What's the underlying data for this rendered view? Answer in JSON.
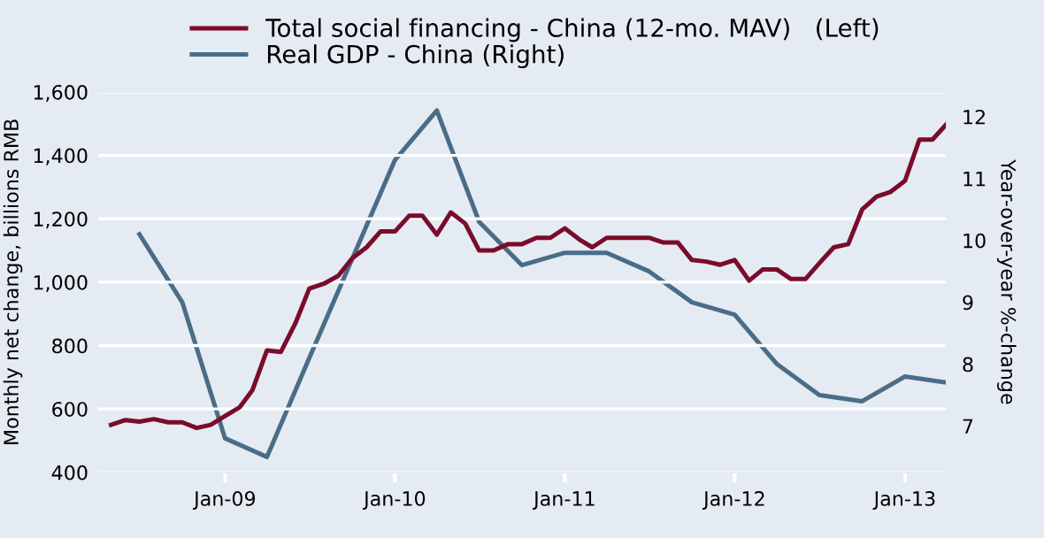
{
  "chart_data": {
    "type": "line",
    "ylabel": "Monthly net change, billions RMB",
    "y2label": "Year-over-year %-change",
    "xlim": [
      "2008-04",
      "2013-04"
    ],
    "xticks": [
      {
        "value": "2009-01",
        "label": "Jan-09"
      },
      {
        "value": "2010-01",
        "label": "Jan-10"
      },
      {
        "value": "2011-01",
        "label": "Jan-11"
      },
      {
        "value": "2012-01",
        "label": "Jan-12"
      },
      {
        "value": "2013-01",
        "label": "Jan-13"
      }
    ],
    "ylim": [
      400,
      1600
    ],
    "yticks": [
      {
        "value": 400,
        "label": "400"
      },
      {
        "value": 600,
        "label": "600"
      },
      {
        "value": 800,
        "label": "800"
      },
      {
        "value": 1000,
        "label": "1,000"
      },
      {
        "value": 1200,
        "label": "1,200"
      },
      {
        "value": 1400,
        "label": "1,400"
      },
      {
        "value": 1600,
        "label": "1,600"
      }
    ],
    "y2lim": [
      6.25,
      12.4
    ],
    "y2ticks": [
      7,
      8,
      9,
      10,
      11,
      12
    ],
    "grid": "y",
    "legend": "top",
    "marker": "none",
    "line_style": "solid",
    "series": [
      {
        "name": "Total social financing - China (12-mo. MAV)   (Left)",
        "color": "#7a0c2a",
        "x": [
          "2008-05",
          "2008-06",
          "2008-07",
          "2008-08",
          "2008-09",
          "2008-10",
          "2008-11",
          "2008-12",
          "2009-01",
          "2009-02",
          "2009-03",
          "2009-04",
          "2009-05",
          "2009-06",
          "2009-07",
          "2009-08",
          "2009-09",
          "2009-10",
          "2009-11",
          "2009-12",
          "2010-01",
          "2010-02",
          "2010-03",
          "2010-04",
          "2010-05",
          "2010-06",
          "2010-07",
          "2010-08",
          "2010-09",
          "2010-10",
          "2010-11",
          "2010-12",
          "2011-01",
          "2011-02",
          "2011-03",
          "2011-04",
          "2011-05",
          "2011-06",
          "2011-07",
          "2011-08",
          "2011-09",
          "2011-10",
          "2011-11",
          "2011-12",
          "2012-01",
          "2012-02",
          "2012-03",
          "2012-04",
          "2012-05",
          "2012-06",
          "2012-07",
          "2012-08",
          "2012-09",
          "2012-10",
          "2012-11",
          "2012-12",
          "2013-01",
          "2013-02",
          "2013-03",
          "2013-04"
        ],
        "values": [
          550,
          565,
          560,
          568,
          558,
          558,
          540,
          550,
          578,
          605,
          660,
          785,
          780,
          870,
          980,
          995,
          1020,
          1075,
          1110,
          1160,
          1160,
          1210,
          1210,
          1150,
          1220,
          1185,
          1100,
          1100,
          1120,
          1120,
          1140,
          1140,
          1170,
          1135,
          1110,
          1140,
          1140,
          1140,
          1140,
          1125,
          1125,
          1070,
          1065,
          1055,
          1070,
          1005,
          1040,
          1040,
          1010,
          1010,
          1060,
          1110,
          1120,
          1230,
          1270,
          1285,
          1320,
          1450,
          1450,
          1500
        ]
      },
      {
        "name": "Real GDP - China (Right)",
        "color": "#4a6d87",
        "axis": "y2",
        "x": [
          "2008-07",
          "2008-10",
          "2009-01",
          "2009-04",
          "2009-07",
          "2009-10",
          "2010-01",
          "2010-04",
          "2010-07",
          "2010-10",
          "2011-01",
          "2011-04",
          "2011-07",
          "2011-10",
          "2012-01",
          "2012-04",
          "2012-07",
          "2012-10",
          "2013-01",
          "2013-04"
        ],
        "values": [
          10.1,
          9.0,
          6.8,
          6.5,
          8.1,
          9.7,
          11.3,
          12.1,
          10.3,
          9.6,
          9.8,
          9.8,
          9.5,
          9.0,
          8.8,
          8.0,
          7.5,
          7.4,
          7.8,
          7.7
        ]
      }
    ]
  }
}
